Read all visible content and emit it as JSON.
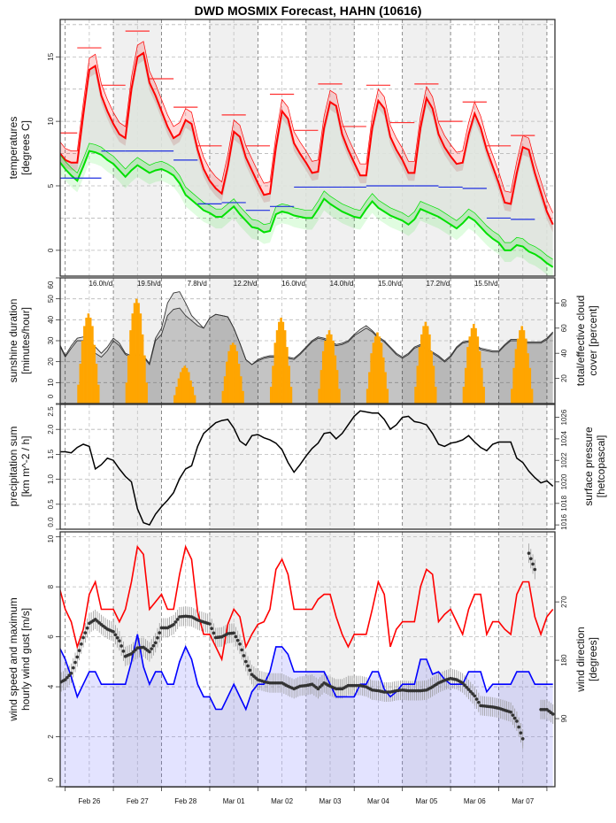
{
  "title": "DWD MOSMIX Forecast, HAHN (10616)",
  "x_axis": {
    "labels": [
      "Feb 26",
      "Feb 27",
      "Feb 28",
      "Mar 01",
      "Mar 02",
      "Mar 03",
      "Mar 04",
      "Mar 05",
      "Mar 06",
      "Mar 07"
    ],
    "xlim": [
      "Feb 25 21:30",
      "Mar 08 04:00"
    ],
    "time_start": "Feb 25 21:00",
    "step_hours": 3
  },
  "chart_data": [
    {
      "type": "line",
      "ylabel": [
        "temperatures",
        "[degrees C]"
      ],
      "ylim": [
        -2,
        17.9
      ],
      "yticks": [
        0,
        5,
        10,
        15
      ],
      "ytick_labels": [
        "0",
        "5",
        "10",
        "15"
      ],
      "grid": true,
      "colors": {
        "temperature": "#ff0000",
        "dewpoint": "#00e000",
        "fill": "#dfe4de",
        "max": "#ff3030",
        "min": "#2030e0"
      },
      "series": [
        {
          "key": "temperature",
          "color": "#ff0000",
          "band": [
            -0.6,
            0.9
          ],
          "values": [
            7.6,
            7.0,
            6.8,
            6.8,
            10.5,
            14.0,
            14.3,
            12.0,
            10.8,
            9.8,
            9.0,
            8.7,
            12.5,
            15.0,
            15.3,
            13.0,
            12.0,
            10.8,
            9.6,
            8.7,
            9.0,
            10.1,
            9.8,
            7.8,
            6.3,
            5.4,
            4.8,
            4.4,
            6.5,
            9.2,
            8.8,
            7.2,
            6.2,
            5.2,
            4.3,
            4.4,
            8.0,
            10.8,
            10.2,
            8.3,
            7.5,
            6.8,
            6.0,
            6.1,
            9.5,
            11.5,
            11.2,
            9.0,
            7.8,
            6.8,
            5.8,
            5.8,
            9.5,
            11.6,
            11.0,
            8.8,
            7.8,
            7.0,
            6.0,
            6.0,
            9.5,
            11.8,
            11.0,
            9.0,
            8.0,
            7.3,
            6.7,
            6.8,
            9.0,
            10.6,
            9.5,
            7.8,
            6.5,
            5.2,
            3.7,
            3.6,
            6.0,
            8.0,
            7.8,
            6.0,
            4.5,
            3.0,
            2.0
          ]
        },
        {
          "key": "dewpoint",
          "color": "#00e000",
          "band": [
            -0.9,
            0.6
          ],
          "values": [
            6.9,
            6.3,
            5.8,
            5.4,
            6.5,
            7.7,
            7.6,
            7.4,
            7.0,
            6.7,
            6.2,
            5.7,
            6.2,
            6.6,
            6.3,
            6.0,
            6.2,
            6.3,
            6.1,
            5.8,
            5.2,
            4.3,
            3.9,
            3.5,
            3.1,
            2.9,
            2.6,
            2.6,
            3.0,
            3.4,
            2.8,
            2.3,
            1.8,
            1.7,
            1.4,
            1.5,
            2.8,
            3.0,
            2.9,
            2.7,
            2.6,
            2.5,
            2.5,
            3.2,
            4.0,
            3.6,
            3.3,
            3.0,
            2.8,
            2.6,
            2.5,
            3.2,
            3.8,
            3.3,
            3.0,
            2.7,
            2.5,
            2.3,
            2.0,
            2.4,
            3.2,
            3.0,
            2.8,
            2.6,
            2.3,
            2.0,
            1.7,
            2.1,
            2.6,
            2.3,
            1.8,
            1.3,
            0.9,
            0.6,
            0.0,
            0.0,
            0.4,
            0.3,
            -0.1,
            -0.3,
            -0.6,
            -1.0,
            -1.3
          ]
        }
      ],
      "periods": {
        "start": "Feb 25 18:00",
        "hours": 12,
        "max": [
          9.1,
          15.7,
          12.8,
          17.0,
          13.3,
          11.1,
          8.1,
          10.5,
          8.1,
          12.1,
          9.3,
          12.9,
          9.6,
          12.8,
          9.9,
          12.9,
          10.0,
          11.5,
          8.1,
          8.9
        ],
        "min": [
          5.6,
          5.6,
          7.7,
          7.7,
          7.7,
          7.0,
          3.6,
          3.7,
          3.1,
          3.4,
          4.9,
          4.9,
          4.9,
          5.0,
          5.0,
          5.0,
          4.9,
          4.8,
          2.5,
          2.4
        ]
      }
    },
    {
      "type": "bar",
      "ylabel": [
        "sunshine duration",
        "[minutes/hour]"
      ],
      "y2label": [
        "total/effective cloud",
        "cover [percent]"
      ],
      "ylim": [
        0,
        60
      ],
      "yticks": [
        0,
        10,
        20,
        30,
        40,
        50,
        60
      ],
      "ytick_labels": [
        "0",
        "10",
        "20",
        "30",
        "40",
        "50",
        "60"
      ],
      "y2lim": [
        0,
        100
      ],
      "y2ticks": [
        20,
        40,
        60,
        80
      ],
      "y2tick_labels": [
        "20",
        "40",
        "60",
        "80"
      ],
      "colors": {
        "sunshine": "#ffa500",
        "cloud_line": "#333333",
        "cloud_fill": "#c8c8c8"
      },
      "sunshine_days": [
        {
          "date": "Feb 26",
          "start_hour": 6,
          "minutes": [
            9,
            19,
            30,
            37,
            41,
            43,
            41,
            37,
            28,
            19,
            9
          ],
          "total_label": "16.0h/d"
        },
        {
          "date": "Feb 27",
          "start_hour": 6,
          "minutes": [
            10,
            23,
            35,
            43,
            48,
            50,
            48,
            43,
            33,
            23,
            10
          ],
          "total_label": "19.5h/d"
        },
        {
          "date": "Feb 28",
          "start_hour": 6,
          "minutes": [
            4,
            8,
            12,
            15,
            17,
            18,
            17,
            15,
            11,
            8,
            4
          ],
          "total_label": "7.8h/d"
        },
        {
          "date": "Mar 01",
          "start_hour": 6,
          "minutes": [
            6,
            13,
            20,
            25,
            28,
            29,
            28,
            25,
            19,
            13,
            6
          ],
          "total_label": "12.2h/d"
        },
        {
          "date": "Mar 02",
          "start_hour": 6,
          "minutes": [
            8,
            18,
            29,
            35,
            39,
            41,
            39,
            35,
            27,
            18,
            8
          ],
          "total_label": "16.0h/d"
        },
        {
          "date": "Mar 03",
          "start_hour": 6,
          "minutes": [
            7,
            16,
            25,
            30,
            33,
            35,
            33,
            30,
            23,
            16,
            7
          ],
          "total_label": "14.0h/d"
        },
        {
          "date": "Mar 04",
          "start_hour": 6,
          "minutes": [
            7,
            15,
            24,
            29,
            32,
            34,
            32,
            29,
            22,
            15,
            7
          ],
          "total_label": "15.0h/d"
        },
        {
          "date": "Mar 05",
          "start_hour": 6,
          "minutes": [
            8,
            18,
            27,
            33,
            37,
            39,
            37,
            33,
            25,
            18,
            8
          ],
          "total_label": "17.2h/d"
        },
        {
          "date": "Mar 06",
          "start_hour": 6,
          "minutes": [
            8,
            17,
            27,
            32,
            36,
            38,
            36,
            32,
            25,
            17,
            8
          ],
          "total_label": "15.5h/d"
        },
        {
          "date": "Mar 07",
          "start_hour": 6,
          "minutes": [
            7,
            17,
            26,
            31,
            35,
            37,
            35,
            31,
            24,
            17,
            7
          ]
        }
      ],
      "cloud_total": [
        48,
        38,
        46,
        52,
        53,
        50,
        45,
        40,
        45,
        52,
        48,
        40,
        38,
        40,
        38,
        32,
        52,
        60,
        80,
        88,
        89,
        80,
        70,
        65,
        60,
        68,
        71,
        70,
        69,
        60,
        48,
        35,
        31,
        35,
        37,
        38,
        38,
        37,
        37,
        36,
        40,
        45,
        50,
        53,
        52,
        50,
        47,
        48,
        50,
        55,
        59,
        62,
        58,
        53,
        50,
        45,
        40,
        37,
        40,
        45,
        47,
        44,
        41,
        38,
        34,
        38,
        45,
        49,
        50,
        47,
        44,
        43,
        42,
        42,
        47,
        51,
        51,
        49,
        49,
        49,
        49,
        52,
        57
      ],
      "cloud_effective": [
        47,
        37,
        44,
        50,
        50,
        46,
        40,
        37,
        42,
        50,
        46,
        39,
        37,
        39,
        37,
        31,
        50,
        55,
        70,
        75,
        76,
        70,
        66,
        62,
        60,
        68,
        71,
        70,
        69,
        60,
        48,
        35,
        31,
        34,
        36,
        37,
        37,
        36,
        36,
        35,
        39,
        44,
        49,
        52,
        51,
        48,
        46,
        47,
        49,
        54,
        57,
        60,
        57,
        52,
        49,
        44,
        39,
        36,
        39,
        44,
        46,
        43,
        40,
        37,
        33,
        37,
        44,
        48,
        49,
        46,
        43,
        42,
        41,
        41,
        46,
        50,
        50,
        48,
        48,
        48,
        48,
        51,
        56
      ]
    },
    {
      "type": "line",
      "ylabel": [
        "precipitation sum",
        "[km m^-2 / h]"
      ],
      "y2label": [
        "surface pressure",
        "[hetcopascal]"
      ],
      "ylim": [
        0,
        2.5
      ],
      "yticks": [
        0,
        0.5,
        1,
        1.5,
        2,
        2.5
      ],
      "ytick_labels": [
        "0.0",
        "0.5",
        "1.0",
        "1.5",
        "2.0",
        "2.5"
      ],
      "y2lim": [
        1015.6,
        1027.2
      ],
      "y2ticks": [
        1016,
        1018,
        1020,
        1022,
        1024,
        1026
      ],
      "y2tick_labels": [
        "1016",
        "1018",
        "1020",
        "1022",
        "1024",
        "1026"
      ],
      "precipitation": [],
      "pressure": [
        1022.8,
        1022.8,
        1022.7,
        1023.2,
        1023.5,
        1023.3,
        1021.2,
        1021.6,
        1022.2,
        1022.0,
        1021.2,
        1020.5,
        1020.0,
        1017.5,
        1016.2,
        1016.0,
        1017.0,
        1017.7,
        1018.3,
        1019.0,
        1020.3,
        1021.2,
        1021.5,
        1023.3,
        1024.5,
        1025.0,
        1025.5,
        1025.7,
        1025.8,
        1025.0,
        1023.8,
        1023.4,
        1024.3,
        1024.4,
        1024.1,
        1023.9,
        1023.6,
        1023.0,
        1021.8,
        1020.9,
        1021.6,
        1022.4,
        1023.1,
        1023.6,
        1024.5,
        1024.6,
        1024.0,
        1024.5,
        1025.3,
        1026.1,
        1026.6,
        1026.5,
        1026.4,
        1026.4,
        1025.8,
        1024.9,
        1025.3,
        1026.0,
        1026.1,
        1025.6,
        1025.5,
        1025.3,
        1024.5,
        1023.5,
        1023.3,
        1023.6,
        1023.7,
        1023.9,
        1024.3,
        1023.7,
        1023.2,
        1022.9,
        1023.5,
        1023.7,
        1023.7,
        1023.7,
        1022.2,
        1021.8,
        1021.0,
        1020.4,
        1019.9,
        1020.1,
        1019.6
      ],
      "colors": {
        "pressure": "#000000"
      }
    },
    {
      "type": "line",
      "ylabel": [
        "wind speed and maximum",
        "hourly wind gust [m/s]"
      ],
      "y2label": [
        "wind direction",
        "[degrees]"
      ],
      "ylim": [
        0,
        10.2
      ],
      "yticks": [
        0,
        2,
        4,
        6,
        8,
        10
      ],
      "ytick_labels": [
        "0",
        "2",
        "4",
        "6",
        "8",
        "10"
      ],
      "y2lim": [
        -15,
        378
      ],
      "y2ticks": [
        90,
        180,
        270
      ],
      "y2tick_labels": [
        "90",
        "180",
        "270"
      ],
      "colors": {
        "gust": "#ff0000",
        "wind": "#0000ff",
        "wind_fill": "#dcdcff",
        "direction": "#333333"
      },
      "gust": [
        8.0,
        7.1,
        6.6,
        5.6,
        6.3,
        7.7,
        8.2,
        7.1,
        7.1,
        7.1,
        6.6,
        7.1,
        8.2,
        9.6,
        9.3,
        7.1,
        7.4,
        7.7,
        7.1,
        7.1,
        8.5,
        9.6,
        9.1,
        7.0,
        6.1,
        6.1,
        5.6,
        5.1,
        6.5,
        7.1,
        6.8,
        5.6,
        6.1,
        6.5,
        6.6,
        7.1,
        8.7,
        9.1,
        8.5,
        7.1,
        7.1,
        7.1,
        7.1,
        7.5,
        7.7,
        7.7,
        6.8,
        6.1,
        5.6,
        6.1,
        6.1,
        6.1,
        7.1,
        8.2,
        7.7,
        5.6,
        6.3,
        6.6,
        6.6,
        6.6,
        8.0,
        8.7,
        8.5,
        6.6,
        6.9,
        7.1,
        6.6,
        6.1,
        7.1,
        7.7,
        7.7,
        6.1,
        6.6,
        6.6,
        6.3,
        6.1,
        7.7,
        8.2,
        8.2,
        6.8,
        6.1,
        6.8,
        7.1
      ],
      "wind_speed": [
        5.6,
        5.1,
        4.4,
        3.6,
        4.1,
        4.6,
        4.6,
        4.1,
        4.1,
        4.1,
        4.1,
        4.1,
        5.0,
        6.1,
        4.8,
        4.1,
        4.6,
        4.6,
        4.1,
        4.1,
        5.0,
        5.6,
        5.1,
        4.1,
        3.6,
        3.6,
        3.1,
        3.1,
        3.6,
        4.1,
        3.6,
        3.1,
        3.8,
        4.1,
        4.1,
        4.6,
        5.6,
        5.6,
        5.3,
        4.6,
        4.6,
        4.6,
        4.6,
        4.6,
        4.6,
        4.1,
        3.6,
        3.6,
        3.6,
        3.6,
        4.1,
        4.1,
        4.6,
        4.6,
        3.9,
        3.6,
        3.8,
        4.1,
        4.1,
        4.1,
        5.1,
        5.1,
        4.5,
        4.6,
        4.3,
        4.1,
        4.1,
        4.1,
        4.6,
        4.6,
        4.6,
        3.8,
        4.1,
        4.1,
        4.1,
        4.1,
        4.6,
        4.6,
        4.6,
        4.1,
        4.1,
        4.1,
        4.1
      ],
      "wind_direction": [
        145,
        150,
        160,
        185,
        215,
        237,
        243,
        235,
        228,
        224,
        210,
        186,
        190,
        199,
        200,
        193,
        207,
        230,
        230,
        235,
        247,
        248,
        247,
        242,
        239,
        236,
        215,
        216,
        221,
        222,
        205,
        178,
        158,
        150,
        147,
        145,
        145,
        145,
        140,
        136,
        140,
        141,
        143,
        136,
        145,
        140,
        136,
        136,
        141,
        141,
        141,
        139,
        134,
        133,
        131,
        131,
        133,
        134,
        133,
        133,
        133,
        134,
        139,
        145,
        149,
        152,
        150,
        145,
        135,
        125,
        110,
        109,
        108,
        106,
        103,
        100,
        86,
        59,
        345,
        320,
        104,
        104,
        97
      ],
      "direction_spread": 15
    }
  ]
}
